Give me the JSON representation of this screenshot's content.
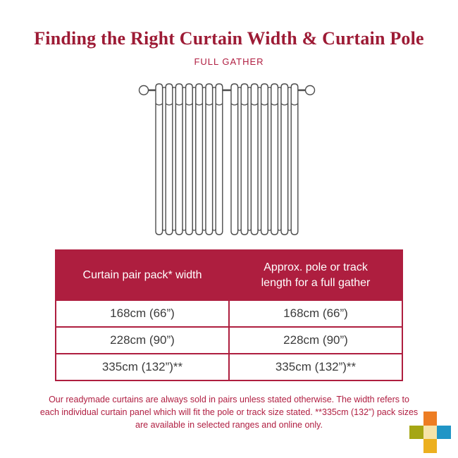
{
  "title": "Finding the Right Curtain Width & Curtain Pole",
  "subtitle": "FULL GATHER",
  "illustration": {
    "name": "curtain-on-pole-full-gather",
    "panels": 2,
    "pleats_per_panel": 7
  },
  "table": {
    "headers": [
      "Curtain pair pack* width",
      "Approx. pole or track length for a full gather"
    ],
    "rows": [
      [
        "168cm (66”)",
        "168cm (66”)"
      ],
      [
        "228cm (90”)",
        "228cm (90”)"
      ],
      [
        "335cm (132”)**",
        "335cm (132”)**"
      ]
    ]
  },
  "footnote": "Our readymade curtains are always sold in pairs unless stated otherwise. The width refers to each individual curtain panel which will fit the pole or track size stated. **335cm (132”) pack sizes are available in selected ranges and online only.",
  "colors": {
    "title_maroon": "#9d1b35",
    "accent_crimson": "#ae1e3f",
    "footnote_crimson": "#b01e41",
    "cell_text": "#3b3b3b",
    "line_art": "#4d4d4d"
  },
  "logo": {
    "squares": [
      {
        "name": "logo-square-top",
        "color": "#ed7d23",
        "col": 1,
        "row": 0
      },
      {
        "name": "logo-square-left",
        "color": "#a5a614",
        "col": 0,
        "row": 1
      },
      {
        "name": "logo-square-center",
        "color": "#f6e3a9",
        "col": 1,
        "row": 1
      },
      {
        "name": "logo-square-right",
        "color": "#2095c6",
        "col": 2,
        "row": 1
      },
      {
        "name": "logo-square-bottom",
        "color": "#ecb01f",
        "col": 1,
        "row": 2
      }
    ]
  }
}
